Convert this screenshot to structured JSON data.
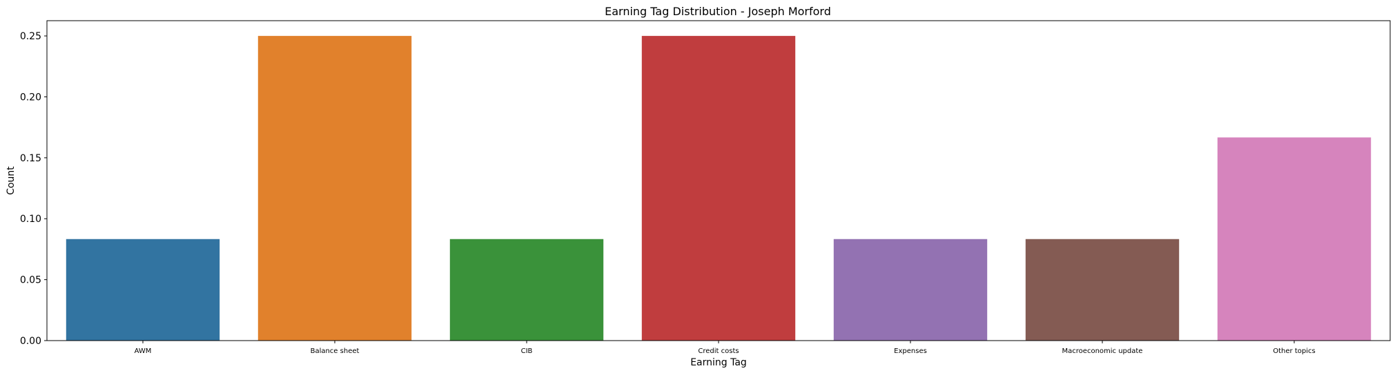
{
  "chart_data": {
    "type": "bar",
    "title": "Earning Tag Distribution - Joseph Morford",
    "xlabel": "Earning Tag",
    "ylabel": "Count",
    "categories": [
      "AWM",
      "Balance sheet",
      "CIB",
      "Credit costs",
      "Expenses",
      "Macroeconomic update",
      "Other topics"
    ],
    "values": [
      0.0833,
      0.25,
      0.0833,
      0.25,
      0.0833,
      0.0833,
      0.1667
    ],
    "colors": [
      "#3274a1",
      "#e1812c",
      "#3a923a",
      "#c03d3e",
      "#9372b2",
      "#845b53",
      "#d684bd"
    ],
    "ylim": [
      0,
      0.2625
    ],
    "yticks": [
      "0.00",
      "0.05",
      "0.10",
      "0.15",
      "0.20",
      "0.25"
    ],
    "grid": false,
    "legend": "none"
  }
}
